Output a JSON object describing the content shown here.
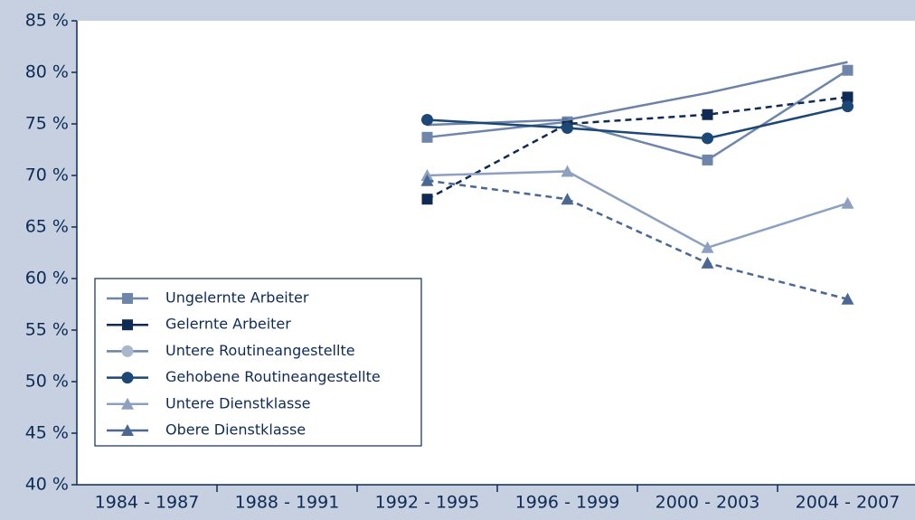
{
  "chart_data": {
    "type": "line",
    "categories": [
      "1984 - 1987",
      "1988 - 1991",
      "1992 - 1995",
      "1996 - 1999",
      "2000 - 2003",
      "2004 - 2007"
    ],
    "ylim": [
      40,
      85
    ],
    "yticks": [
      {
        "value": 40,
        "label": "40 %"
      },
      {
        "value": 45,
        "label": "45 %"
      },
      {
        "value": 50,
        "label": "50 %"
      },
      {
        "value": 55,
        "label": "55 %"
      },
      {
        "value": 60,
        "label": "60 %"
      },
      {
        "value": 65,
        "label": "65 %"
      },
      {
        "value": 70,
        "label": "70 %"
      },
      {
        "value": 75,
        "label": "75 %"
      },
      {
        "value": 80,
        "label": "80 %"
      },
      {
        "value": 85,
        "label": "85 %"
      }
    ],
    "legend": "lower-left",
    "series": [
      {
        "name": "Ungelernte Arbeiter",
        "color": "#6f86ab",
        "marker": "square",
        "dashed": false,
        "values": [
          null,
          null,
          73.7,
          75.2,
          71.5,
          80.2
        ]
      },
      {
        "name": "Gelernte Arbeiter",
        "color": "#0f2b55",
        "marker": "square",
        "dashed": true,
        "values": [
          null,
          null,
          67.7,
          75.0,
          75.9,
          77.6
        ]
      },
      {
        "name": "Untere Routineangestellte",
        "color": "#6c82a6",
        "marker": "none",
        "dashed": false,
        "values": [
          null,
          null,
          74.9,
          75.4,
          78.0,
          81.0
        ]
      },
      {
        "name": "Gehobene Routineangestellte",
        "color": "#1d4774",
        "marker": "circle",
        "dashed": false,
        "values": [
          null,
          null,
          75.4,
          74.6,
          73.6,
          76.7
        ]
      },
      {
        "name": "Untere Dienstklasse",
        "color": "#8ea0bf",
        "marker": "triangle",
        "dashed": false,
        "values": [
          null,
          null,
          70.0,
          70.4,
          63.0,
          67.3
        ]
      },
      {
        "name": "Obere Dienstklasse",
        "color": "#4b6892",
        "marker": "triangle",
        "dashed": true,
        "values": [
          null,
          null,
          69.5,
          67.7,
          61.5,
          58.0
        ]
      }
    ]
  }
}
